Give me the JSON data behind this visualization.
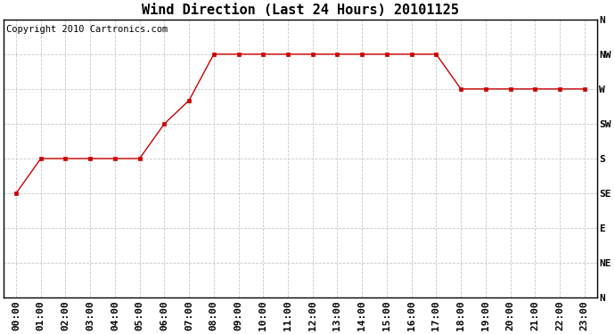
{
  "title": "Wind Direction (Last 24 Hours) 20101125",
  "copyright_text": "Copyright 2010 Cartronics.com",
  "background_color": "#ffffff",
  "plot_bg_color": "#ffffff",
  "grid_color": "#c8c8c8",
  "line_color": "#cc0000",
  "marker_color": "#cc0000",
  "x_labels": [
    "00:00",
    "01:00",
    "02:00",
    "03:00",
    "04:00",
    "05:00",
    "06:00",
    "07:00",
    "08:00",
    "09:00",
    "10:00",
    "11:00",
    "12:00",
    "13:00",
    "14:00",
    "15:00",
    "16:00",
    "17:00",
    "18:00",
    "19:00",
    "20:00",
    "21:00",
    "22:00",
    "23:00"
  ],
  "y_labels": [
    "N",
    "NW",
    "W",
    "SW",
    "S",
    "SE",
    "E",
    "NE",
    "N"
  ],
  "y_tick_positions": [
    8,
    7,
    6,
    5,
    4,
    3,
    2,
    1,
    0
  ],
  "data_points": [
    3,
    4,
    4,
    4,
    4,
    4,
    5,
    5.67,
    7,
    7,
    7,
    7,
    7,
    7,
    7,
    7,
    7,
    7,
    6,
    6,
    6,
    6,
    6,
    6
  ],
  "title_fontsize": 11,
  "axis_fontsize": 8,
  "copyright_fontsize": 7.5
}
